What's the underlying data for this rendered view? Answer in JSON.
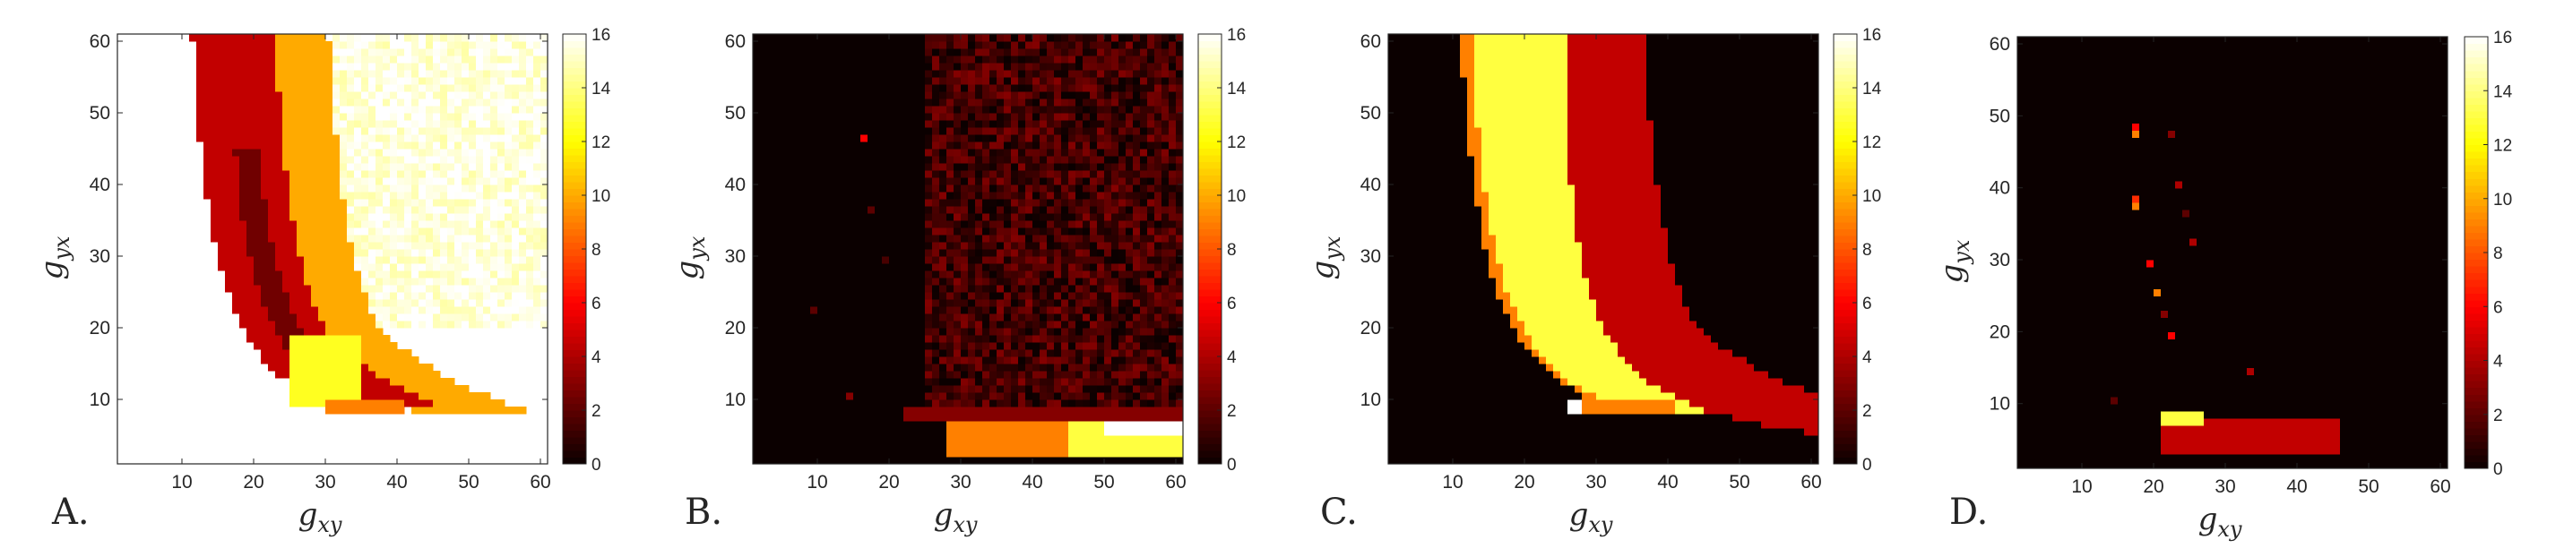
{
  "chart_data": [
    {
      "type": "heatmap",
      "panel_label": "A.",
      "xlabel": "g",
      "xlabel_sub": "xy",
      "ylabel": "g",
      "ylabel_sub": "yx",
      "xlim": [
        1,
        61
      ],
      "ylim": [
        1,
        61
      ],
      "xticks": [
        10,
        20,
        30,
        40,
        50,
        60
      ],
      "yticks": [
        10,
        20,
        30,
        40,
        50,
        60
      ],
      "colorbar": {
        "min": 0,
        "max": 16,
        "ticks": [
          0,
          2,
          4,
          6,
          8,
          10,
          12,
          14,
          16
        ],
        "colormap": "hot"
      },
      "regions": [
        {
          "name": "plateau",
          "value": 15.5,
          "noise": 0.9,
          "x_start": 31,
          "y_min": 20,
          "y_max": 61,
          "x_end": 61
        },
        {
          "name": "orange-outer",
          "value": 10,
          "band": [
            19.5,
            27
          ],
          "y_min": 8,
          "y_max": 61,
          "poly": [
            7.5,
            210
          ]
        },
        {
          "name": "dark-red",
          "value": 4.5,
          "band": [
            8,
            19.5
          ],
          "y_min": 9,
          "y_max": 61,
          "poly": [
            7.5,
            210
          ]
        },
        {
          "name": "darker-core",
          "value": 2.5,
          "band": [
            13,
            16
          ],
          "y_min": 15,
          "y_max": 45,
          "poly": [
            7.5,
            210
          ]
        },
        {
          "name": "yellow-tail",
          "value": 12.5,
          "x_range": [
            25,
            35
          ],
          "y_range": [
            9,
            19
          ]
        },
        {
          "name": "orange-tail",
          "value": 9,
          "x_range": [
            30,
            41
          ],
          "y_range": [
            8,
            10
          ]
        }
      ]
    },
    {
      "type": "heatmap",
      "panel_label": "B.",
      "xlabel": "g",
      "xlabel_sub": "xy",
      "ylabel": "g",
      "ylabel_sub": "yx",
      "xlim": [
        1,
        61
      ],
      "ylim": [
        1,
        61
      ],
      "xticks": [
        10,
        20,
        30,
        40,
        50,
        60
      ],
      "yticks": [
        10,
        20,
        30,
        40,
        50,
        60
      ],
      "colorbar": {
        "min": 0,
        "max": 16,
        "ticks": [
          0,
          2,
          4,
          6,
          8,
          10,
          12,
          14,
          16
        ],
        "colormap": "hot"
      },
      "regions": [
        {
          "name": "background",
          "value": 0
        },
        {
          "name": "noise-field",
          "value": 1.4,
          "noise": 1.6,
          "x_range": [
            25,
            61
          ],
          "y_range": [
            9,
            61
          ]
        },
        {
          "name": "dark-bar",
          "value": 3,
          "x_range": [
            22,
            61
          ],
          "y_range": [
            7,
            9
          ]
        },
        {
          "name": "orange-wedge",
          "value": 9,
          "x_range": [
            28,
            61
          ],
          "y_range": [
            2,
            7
          ]
        },
        {
          "name": "yellow-wedge",
          "value": 13,
          "x_range": [
            45,
            61
          ],
          "y_range": [
            2,
            7
          ]
        },
        {
          "name": "white-band",
          "value": 16,
          "x_range": [
            50,
            61
          ],
          "y_range": [
            5,
            7
          ]
        }
      ],
      "outliers": [
        [
          16,
          46,
          6
        ],
        [
          17,
          36,
          2
        ],
        [
          19,
          29,
          1.5
        ],
        [
          9,
          22,
          2
        ],
        [
          14,
          10,
          3
        ]
      ]
    },
    {
      "type": "heatmap",
      "panel_label": "C.",
      "xlabel": "g",
      "xlabel_sub": "xy",
      "ylabel": "g",
      "ylabel_sub": "yx",
      "xlim": [
        1,
        61
      ],
      "ylim": [
        1,
        61
      ],
      "xticks": [
        10,
        20,
        30,
        40,
        50,
        60
      ],
      "yticks": [
        10,
        20,
        30,
        40,
        50,
        60
      ],
      "colorbar": {
        "min": 0,
        "max": 16,
        "ticks": [
          0,
          2,
          4,
          6,
          8,
          10,
          12,
          14,
          16
        ],
        "colormap": "hot"
      },
      "regions": [
        {
          "name": "background",
          "value": 0
        },
        {
          "name": "orange-edge",
          "value": 9,
          "band": [
            7.5,
            9
          ],
          "y_min": 8,
          "y_max": 61,
          "poly": [
            7.5,
            220
          ]
        },
        {
          "name": "yellow-body",
          "value": 13,
          "band": [
            9,
            22
          ],
          "y_min": 8,
          "y_max": 61,
          "poly": [
            7.5,
            220
          ]
        },
        {
          "name": "dark-red-band",
          "value": 4.5,
          "band": [
            22,
            33
          ],
          "y_min": 4,
          "y_max": 61,
          "poly": [
            7.5,
            220
          ]
        },
        {
          "name": "orange-tail",
          "value": 9,
          "x_range": [
            27,
            41
          ],
          "y_range": [
            8,
            10
          ]
        },
        {
          "name": "white-spot",
          "value": 16,
          "x_range": [
            26,
            28
          ],
          "y_range": [
            8,
            10
          ]
        }
      ]
    },
    {
      "type": "heatmap",
      "panel_label": "D.",
      "xlabel": "g",
      "xlabel_sub": "xy",
      "ylabel": "g",
      "ylabel_sub": "yx",
      "xlim": [
        1,
        61
      ],
      "ylim": [
        1,
        61
      ],
      "xticks": [
        10,
        20,
        30,
        40,
        50,
        60
      ],
      "yticks": [
        10,
        20,
        30,
        40,
        50,
        60
      ],
      "colorbar": {
        "min": 0,
        "max": 16,
        "ticks": [
          0,
          2,
          4,
          6,
          8,
          10,
          12,
          14,
          16
        ],
        "colormap": "hot"
      },
      "regions": [
        {
          "name": "background",
          "value": 0
        },
        {
          "name": "red-streak",
          "value": 4.5,
          "x_range": [
            21,
            46
          ],
          "y_range": [
            3,
            8
          ]
        },
        {
          "name": "yellow-streak",
          "value": 13,
          "x_range": [
            21,
            27
          ],
          "y_range": [
            7,
            9
          ]
        }
      ],
      "outliers": [
        [
          17,
          48,
          6
        ],
        [
          17,
          47,
          9
        ],
        [
          17,
          38,
          7
        ],
        [
          17,
          37,
          9
        ],
        [
          22,
          47,
          3
        ],
        [
          23,
          40,
          4
        ],
        [
          24,
          36,
          2
        ],
        [
          25,
          32,
          4
        ],
        [
          19,
          29,
          6
        ],
        [
          20,
          25,
          9
        ],
        [
          21,
          22,
          3
        ],
        [
          22,
          19,
          6
        ],
        [
          33,
          14,
          4
        ],
        [
          14,
          10,
          2
        ]
      ]
    }
  ]
}
